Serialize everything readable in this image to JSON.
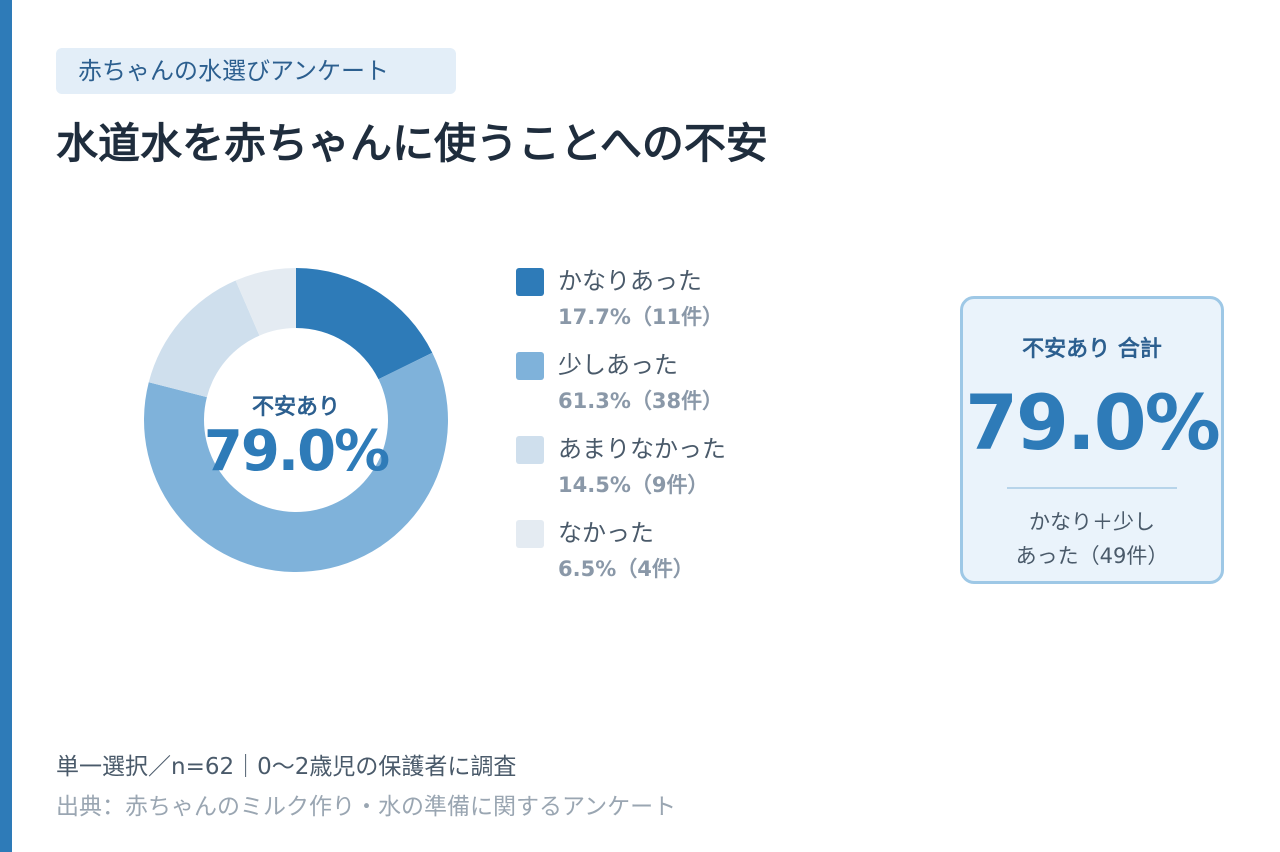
{
  "tag": "赤ちゃんの水選びアンケート",
  "title": "水道水を赤ちゃんに使うことへの不安",
  "center_label": "不安あり",
  "center_value": "79.0%",
  "summary": {
    "heading": "不安あり 合計",
    "value": "79.0%",
    "note_line1": "かなり＋少し",
    "note_line2": "あった（49件）"
  },
  "footer": {
    "method": "単一選択／n=62｜0〜2歳児の保護者に調査",
    "source": "出典：赤ちゃんのミルク作り・水の準備に関するアンケート"
  },
  "chart_data": {
    "type": "pie",
    "categories": [
      "かなりあった",
      "少しあった",
      "あまりなかった",
      "なかった"
    ],
    "values": [
      17.7,
      61.3,
      14.5,
      6.5
    ],
    "counts": [
      11,
      38,
      9,
      4
    ],
    "value_labels": [
      "17.7%（11件）",
      "61.3%（38件）",
      "14.5%（9件）",
      "6.5%（4件）"
    ],
    "colors": [
      "#2e7bb8",
      "#7fb2da",
      "#cfdfed",
      "#e4ebf2"
    ],
    "legend_position": "right"
  }
}
